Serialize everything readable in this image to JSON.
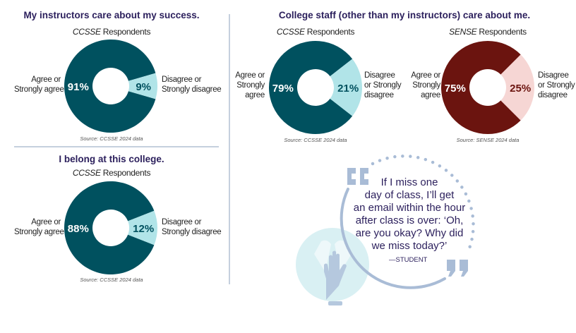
{
  "colors": {
    "title": "#2b1f5c",
    "teal": "#00515f",
    "teal_light": "#b1e4e8",
    "maroon": "#6b140f",
    "maroon_light": "#f6d6d4",
    "accent_quote": "#a9bcd6"
  },
  "chart_data": [
    {
      "type": "pie",
      "title": "My instructors care about my success.",
      "subtitle_italic": "CCSSE",
      "subtitle": " Respondents",
      "slices": [
        {
          "label": "Agree or Strongly agree",
          "value": 91,
          "display": "91%"
        },
        {
          "label": "Disagree or Strongly disagree",
          "value": 9,
          "display": "9%"
        }
      ],
      "source": "Source: CCSSE 2024 data",
      "colors": [
        "#00515f",
        "#b1e4e8"
      ],
      "label_colors": [
        "#ffffff",
        "#00515f"
      ]
    },
    {
      "type": "pie",
      "title": "I belong at this college.",
      "subtitle_italic": "CCSSE",
      "subtitle": " Respondents",
      "slices": [
        {
          "label": "Agree or Strongly agree",
          "value": 88,
          "display": "88%"
        },
        {
          "label": "Disagree or Strongly disagree",
          "value": 12,
          "display": "12%"
        }
      ],
      "source": "Source: CCSSE 2024 data",
      "colors": [
        "#00515f",
        "#b1e4e8"
      ],
      "label_colors": [
        "#ffffff",
        "#00515f"
      ]
    },
    {
      "type": "pie",
      "title": "College staff (other than my instructors) care about me.",
      "subtitle_italic": "CCSSE",
      "subtitle": " Respondents",
      "slices": [
        {
          "label": "Agree or Strongly agree",
          "value": 79,
          "display": "79%"
        },
        {
          "label": "Disagree or Strongly disagree",
          "value": 21,
          "display": "21%"
        }
      ],
      "source": "Source: CCSSE 2024 data",
      "colors": [
        "#00515f",
        "#b1e4e8"
      ],
      "label_colors": [
        "#ffffff",
        "#00515f"
      ]
    },
    {
      "type": "pie",
      "subtitle_italic": "SENSE",
      "subtitle": " Respondents",
      "slices": [
        {
          "label": "Agree or Strongly agree",
          "value": 75,
          "display": "75%"
        },
        {
          "label": "Disagree or Strongly disagree",
          "value": 25,
          "display": "25%"
        }
      ],
      "source": "Source: SENSE 2024 data",
      "colors": [
        "#6b140f",
        "#f6d6d4"
      ],
      "label_colors": [
        "#ffffff",
        "#6b140f"
      ]
    }
  ],
  "labels": {
    "agree_2line": "Agree or\nStrongly agree",
    "disagree_2line": "Disagree or\nStrongly disagree",
    "agree_3line": "Agree or\nStrongly\nagree",
    "disagree_3line": "Disagree\nor Strongly\ndisagree"
  },
  "quote": {
    "text": "If I miss one\nday of class, I’ll get\nan email within the hour\nafter class is over: ‘Oh,\nare you okay? Why did\nwe miss today?’",
    "attribution": "—STUDENT",
    "icon": "raised-hands-icon"
  }
}
